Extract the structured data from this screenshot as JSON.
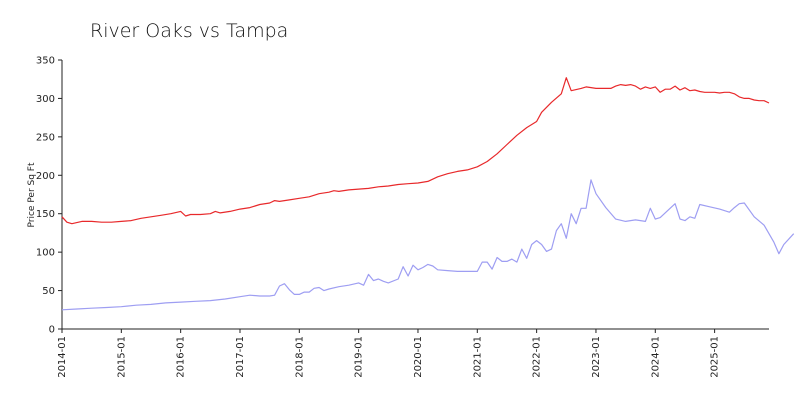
{
  "chart_data": {
    "type": "line",
    "title": "River Oaks vs Tampa",
    "xlabel": "",
    "ylabel": "Price Per Sq Ft",
    "ylim": [
      0,
      350
    ],
    "yticks": [
      0,
      50,
      100,
      150,
      200,
      250,
      300,
      350
    ],
    "xlim": [
      "2014-01",
      "2025-12"
    ],
    "xticks": [
      "2014-01",
      "2015-01",
      "2016-01",
      "2017-01",
      "2018-01",
      "2019-01",
      "2020-01",
      "2021-01",
      "2022-01",
      "2023-01",
      "2024-01",
      "2025-01"
    ],
    "grid": false,
    "legend": "none",
    "series": [
      {
        "color": "#e8292b",
        "points": [
          [
            "2014-01",
            146
          ],
          [
            "2014-02",
            139
          ],
          [
            "2014-03",
            137
          ],
          [
            "2014-05",
            140
          ],
          [
            "2014-07",
            140
          ],
          [
            "2014-09",
            139
          ],
          [
            "2014-11",
            139
          ],
          [
            "2015-01",
            140
          ],
          [
            "2015-03",
            141
          ],
          [
            "2015-05",
            144
          ],
          [
            "2015-07",
            146
          ],
          [
            "2015-09",
            148
          ],
          [
            "2015-11",
            150
          ],
          [
            "2016-01",
            153
          ],
          [
            "2016-02",
            147
          ],
          [
            "2016-03",
            149
          ],
          [
            "2016-05",
            149
          ],
          [
            "2016-07",
            150
          ],
          [
            "2016-08",
            153
          ],
          [
            "2016-09",
            151
          ],
          [
            "2016-11",
            153
          ],
          [
            "2017-01",
            156
          ],
          [
            "2017-03",
            158
          ],
          [
            "2017-05",
            162
          ],
          [
            "2017-07",
            164
          ],
          [
            "2017-08",
            167
          ],
          [
            "2017-09",
            166
          ],
          [
            "2017-11",
            168
          ],
          [
            "2018-01",
            170
          ],
          [
            "2018-03",
            172
          ],
          [
            "2018-05",
            176
          ],
          [
            "2018-07",
            178
          ],
          [
            "2018-08",
            180
          ],
          [
            "2018-09",
            179
          ],
          [
            "2018-11",
            181
          ],
          [
            "2019-01",
            182
          ],
          [
            "2019-03",
            183
          ],
          [
            "2019-05",
            185
          ],
          [
            "2019-07",
            186
          ],
          [
            "2019-09",
            188
          ],
          [
            "2019-11",
            189
          ],
          [
            "2020-01",
            190
          ],
          [
            "2020-03",
            192
          ],
          [
            "2020-05",
            198
          ],
          [
            "2020-07",
            202
          ],
          [
            "2020-09",
            205
          ],
          [
            "2020-11",
            207
          ],
          [
            "2021-01",
            211
          ],
          [
            "2021-03",
            218
          ],
          [
            "2021-05",
            228
          ],
          [
            "2021-07",
            240
          ],
          [
            "2021-09",
            252
          ],
          [
            "2021-11",
            262
          ],
          [
            "2022-01",
            270
          ],
          [
            "2022-02",
            282
          ],
          [
            "2022-04",
            295
          ],
          [
            "2022-06",
            306
          ],
          [
            "2022-07",
            327
          ],
          [
            "2022-08",
            310
          ],
          [
            "2022-10",
            313
          ],
          [
            "2022-11",
            315
          ],
          [
            "2023-01",
            313
          ],
          [
            "2023-03",
            313
          ],
          [
            "2023-04",
            313
          ],
          [
            "2023-05",
            316
          ],
          [
            "2023-06",
            318
          ],
          [
            "2023-07",
            317
          ],
          [
            "2023-08",
            318
          ],
          [
            "2023-09",
            316
          ],
          [
            "2023-10",
            312
          ],
          [
            "2023-11",
            315
          ],
          [
            "2023-12",
            313
          ],
          [
            "2024-01",
            315
          ],
          [
            "2024-02",
            308
          ],
          [
            "2024-03",
            312
          ],
          [
            "2024-04",
            312
          ],
          [
            "2024-05",
            316
          ],
          [
            "2024-06",
            311
          ],
          [
            "2024-07",
            314
          ],
          [
            "2024-08",
            310
          ],
          [
            "2024-09",
            311
          ],
          [
            "2024-10",
            309
          ],
          [
            "2024-11",
            308
          ],
          [
            "2024-12",
            308
          ],
          [
            "2025-01",
            308
          ],
          [
            "2025-02",
            307
          ],
          [
            "2025-03",
            308
          ],
          [
            "2025-04",
            308
          ],
          [
            "2025-05",
            306
          ],
          [
            "2025-06",
            302
          ],
          [
            "2025-07",
            300
          ],
          [
            "2025-08",
            300
          ],
          [
            "2025-09",
            298
          ],
          [
            "2025-10",
            297
          ],
          [
            "2025-11",
            297
          ],
          [
            "2025-12",
            294
          ]
        ]
      },
      {
        "color": "#9e9ef2",
        "points": [
          [
            "2014-01",
            25
          ],
          [
            "2014-04",
            26
          ],
          [
            "2014-07",
            27
          ],
          [
            "2014-10",
            28
          ],
          [
            "2015-01",
            29
          ],
          [
            "2015-04",
            31
          ],
          [
            "2015-07",
            32
          ],
          [
            "2015-10",
            34
          ],
          [
            "2016-01",
            35
          ],
          [
            "2016-04",
            36
          ],
          [
            "2016-07",
            37
          ],
          [
            "2016-10",
            39
          ],
          [
            "2017-01",
            42
          ],
          [
            "2017-03",
            44
          ],
          [
            "2017-05",
            43
          ],
          [
            "2017-07",
            43
          ],
          [
            "2017-08",
            44
          ],
          [
            "2017-09",
            56
          ],
          [
            "2017-10",
            59
          ],
          [
            "2017-11",
            51
          ],
          [
            "2017-12",
            45
          ],
          [
            "2018-01",
            45
          ],
          [
            "2018-02",
            48
          ],
          [
            "2018-03",
            48
          ],
          [
            "2018-04",
            53
          ],
          [
            "2018-05",
            54
          ],
          [
            "2018-06",
            50
          ],
          [
            "2018-07",
            52
          ],
          [
            "2018-09",
            55
          ],
          [
            "2018-11",
            57
          ],
          [
            "2019-01",
            60
          ],
          [
            "2019-02",
            57
          ],
          [
            "2019-03",
            71
          ],
          [
            "2019-04",
            63
          ],
          [
            "2019-05",
            65
          ],
          [
            "2019-06",
            62
          ],
          [
            "2019-07",
            60
          ],
          [
            "2019-09",
            65
          ],
          [
            "2019-10",
            81
          ],
          [
            "2019-11",
            69
          ],
          [
            "2019-12",
            83
          ],
          [
            "2020-01",
            77
          ],
          [
            "2020-02",
            80
          ],
          [
            "2020-03",
            84
          ],
          [
            "2020-04",
            82
          ],
          [
            "2020-05",
            77
          ],
          [
            "2020-07",
            76
          ],
          [
            "2020-09",
            75
          ],
          [
            "2020-11",
            75
          ],
          [
            "2021-01",
            75
          ],
          [
            "2021-02",
            87
          ],
          [
            "2021-03",
            87
          ],
          [
            "2021-04",
            78
          ],
          [
            "2021-05",
            93
          ],
          [
            "2021-06",
            88
          ],
          [
            "2021-07",
            88
          ],
          [
            "2021-08",
            91
          ],
          [
            "2021-09",
            87
          ],
          [
            "2021-10",
            104
          ],
          [
            "2021-11",
            92
          ],
          [
            "2021-12",
            110
          ],
          [
            "2022-01",
            115
          ],
          [
            "2022-02",
            110
          ],
          [
            "2022-03",
            101
          ],
          [
            "2022-04",
            104
          ],
          [
            "2022-05",
            128
          ],
          [
            "2022-06",
            137
          ],
          [
            "2022-07",
            118
          ],
          [
            "2022-08",
            150
          ],
          [
            "2022-09",
            137
          ],
          [
            "2022-10",
            157
          ],
          [
            "2022-11",
            157
          ],
          [
            "2022-12",
            194
          ],
          [
            "2023-01",
            176
          ],
          [
            "2023-03",
            158
          ],
          [
            "2023-05",
            143
          ],
          [
            "2023-07",
            140
          ],
          [
            "2023-09",
            142
          ],
          [
            "2023-11",
            140
          ],
          [
            "2023-12",
            157
          ],
          [
            "2024-01",
            143
          ],
          [
            "2024-02",
            145
          ],
          [
            "2024-04",
            157
          ],
          [
            "2024-05",
            163
          ],
          [
            "2024-06",
            143
          ],
          [
            "2024-07",
            141
          ],
          [
            "2024-08",
            146
          ],
          [
            "2024-09",
            144
          ],
          [
            "2024-10",
            162
          ],
          [
            "2024-12",
            159
          ],
          [
            "2025-02",
            156
          ],
          [
            "2025-04",
            152
          ],
          [
            "2025-05",
            158
          ],
          [
            "2025-06",
            163
          ],
          [
            "2025-07",
            164
          ],
          [
            "2025-09",
            146
          ],
          [
            "2025-11",
            135
          ],
          [
            "2026-01",
            113
          ],
          [
            "2026-02",
            98
          ],
          [
            "2026-03",
            110
          ],
          [
            "2026-05",
            124
          ]
        ]
      }
    ]
  }
}
